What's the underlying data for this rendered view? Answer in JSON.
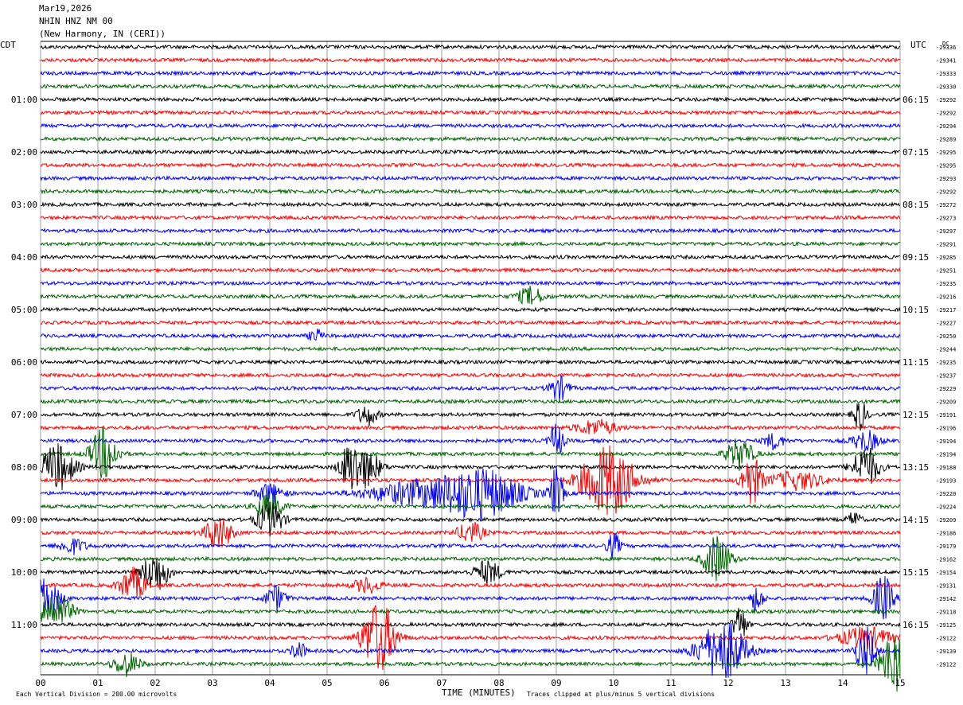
{
  "header": {
    "date": "Mar19,2026",
    "station": "NHIN HNZ NM 00",
    "location": "(New Harmony, IN (CERI))"
  },
  "left_tz": "CDT",
  "right_tz": "UTC",
  "dc_label": "DC",
  "footer": {
    "scale": "Each Vertical Division =  200.00 microvolts",
    "xlabel": "TIME (MINUTES)",
    "clip": "Traces clipped at plus/minus 5 vertical divisions"
  },
  "colors": {
    "trace_cycle": [
      "#000000",
      "#ff0000",
      "#0000ff",
      "#006400"
    ],
    "grid": "#888888",
    "background": "#ffffff"
  },
  "chart_data": {
    "type": "line",
    "title": "",
    "xlabel": "TIME (MINUTES)",
    "xlim": [
      0,
      15
    ],
    "x_ticks": [
      "00",
      "01",
      "02",
      "03",
      "04",
      "05",
      "06",
      "07",
      "08",
      "09",
      "10",
      "11",
      "12",
      "13",
      "14",
      "15"
    ],
    "grid": true,
    "left_hour_labels": [
      "01:00",
      "02:00",
      "03:00",
      "04:00",
      "05:00",
      "06:00",
      "07:00",
      "08:00",
      "09:00",
      "10:00",
      "11:00"
    ],
    "right_hour_labels": [
      "06:15",
      "07:15",
      "08:15",
      "09:15",
      "10:15",
      "11:15",
      "12:15",
      "13:15",
      "14:15",
      "15:15",
      "16:15"
    ],
    "trace_offsets": [
      "-29336",
      "-29341",
      "-29333",
      "-29330",
      "-29292",
      "-29292",
      "-29294",
      "-29289",
      "-29295",
      "-29295",
      "-29293",
      "-29292",
      "-29272",
      "-29273",
      "-29297",
      "-29291",
      "-29285",
      "-29251",
      "-29235",
      "-29216",
      "-29217",
      "-29227",
      "-29250",
      "-29244",
      "-29235",
      "-29237",
      "-29229",
      "-29209",
      "-29191",
      "-29196",
      "-29194",
      "-29194",
      "-29188",
      "-29193",
      "-29220",
      "-29224",
      "-29209",
      "-29186",
      "-29179",
      "-29162",
      "-29154",
      "-29131",
      "-29142",
      "-29118",
      "-29125",
      "-29122",
      "-29139",
      "-29122"
    ],
    "events": [
      {
        "trace": 19,
        "minute": 8.55,
        "amp": 0.7,
        "dur": 0.2
      },
      {
        "trace": 22,
        "minute": 4.8,
        "amp": 0.5,
        "dur": 0.1
      },
      {
        "trace": 26,
        "minute": 9.05,
        "amp": 0.9,
        "dur": 0.15
      },
      {
        "trace": 28,
        "minute": 5.7,
        "amp": 0.8,
        "dur": 0.15
      },
      {
        "trace": 28,
        "minute": 14.3,
        "amp": 1.2,
        "dur": 0.1
      },
      {
        "trace": 29,
        "minute": 9.7,
        "amp": 0.6,
        "dur": 0.3
      },
      {
        "trace": 30,
        "minute": 9.0,
        "amp": 1.5,
        "dur": 0.1
      },
      {
        "trace": 30,
        "minute": 14.4,
        "amp": 0.8,
        "dur": 0.2
      },
      {
        "trace": 30,
        "minute": 12.8,
        "amp": 0.6,
        "dur": 0.15
      },
      {
        "trace": 31,
        "minute": 1.1,
        "amp": 2.0,
        "dur": 0.2
      },
      {
        "trace": 31,
        "minute": 12.2,
        "amp": 1.2,
        "dur": 0.2
      },
      {
        "trace": 32,
        "minute": 0.3,
        "amp": 1.8,
        "dur": 0.25
      },
      {
        "trace": 32,
        "minute": 5.4,
        "amp": 1.8,
        "dur": 0.15
      },
      {
        "trace": 32,
        "minute": 5.7,
        "amp": 1.4,
        "dur": 0.2
      },
      {
        "trace": 32,
        "minute": 14.4,
        "amp": 1.6,
        "dur": 0.2
      },
      {
        "trace": 33,
        "minute": 9.9,
        "amp": 2.8,
        "dur": 0.4
      },
      {
        "trace": 33,
        "minute": 12.4,
        "amp": 2.0,
        "dur": 0.15
      },
      {
        "trace": 33,
        "minute": 13.2,
        "amp": 0.7,
        "dur": 0.4
      },
      {
        "trace": 34,
        "minute": 7.7,
        "amp": 1.8,
        "dur": 0.6
      },
      {
        "trace": 34,
        "minute": 6.6,
        "amp": 0.9,
        "dur": 0.8
      },
      {
        "trace": 34,
        "minute": 9.0,
        "amp": 2.0,
        "dur": 0.1
      },
      {
        "trace": 34,
        "minute": 4.0,
        "amp": 0.8,
        "dur": 0.2
      },
      {
        "trace": 35,
        "minute": 4.0,
        "amp": 1.0,
        "dur": 0.2
      },
      {
        "trace": 36,
        "minute": 4.0,
        "amp": 1.3,
        "dur": 0.2
      },
      {
        "trace": 36,
        "minute": 14.2,
        "amp": 0.6,
        "dur": 0.1
      },
      {
        "trace": 37,
        "minute": 3.1,
        "amp": 1.3,
        "dur": 0.2
      },
      {
        "trace": 37,
        "minute": 7.5,
        "amp": 0.8,
        "dur": 0.2
      },
      {
        "trace": 38,
        "minute": 0.55,
        "amp": 0.6,
        "dur": 0.2
      },
      {
        "trace": 38,
        "minute": 10.0,
        "amp": 1.0,
        "dur": 0.1
      },
      {
        "trace": 39,
        "minute": 11.8,
        "amp": 1.8,
        "dur": 0.2
      },
      {
        "trace": 40,
        "minute": 2.0,
        "amp": 1.6,
        "dur": 0.2
      },
      {
        "trace": 40,
        "minute": 7.8,
        "amp": 0.9,
        "dur": 0.2
      },
      {
        "trace": 41,
        "minute": 1.6,
        "amp": 1.3,
        "dur": 0.2
      },
      {
        "trace": 41,
        "minute": 5.7,
        "amp": 0.6,
        "dur": 0.2
      },
      {
        "trace": 42,
        "minute": 0.1,
        "amp": 1.6,
        "dur": 0.2
      },
      {
        "trace": 42,
        "minute": 4.1,
        "amp": 1.0,
        "dur": 0.15
      },
      {
        "trace": 42,
        "minute": 12.5,
        "amp": 1.0,
        "dur": 0.1
      },
      {
        "trace": 42,
        "minute": 14.7,
        "amp": 1.8,
        "dur": 0.15
      },
      {
        "trace": 43,
        "minute": 0.25,
        "amp": 1.5,
        "dur": 0.25
      },
      {
        "trace": 44,
        "minute": 12.2,
        "amp": 1.5,
        "dur": 0.1
      },
      {
        "trace": 45,
        "minute": 5.9,
        "amp": 2.8,
        "dur": 0.25
      },
      {
        "trace": 45,
        "minute": 14.4,
        "amp": 0.8,
        "dur": 0.4
      },
      {
        "trace": 46,
        "minute": 12.0,
        "amp": 1.8,
        "dur": 0.3
      },
      {
        "trace": 46,
        "minute": 14.4,
        "amp": 1.8,
        "dur": 0.15
      },
      {
        "trace": 46,
        "minute": 4.5,
        "amp": 0.8,
        "dur": 0.1
      },
      {
        "trace": 46,
        "minute": 11.7,
        "amp": 1.0,
        "dur": 0.3
      },
      {
        "trace": 47,
        "minute": 14.9,
        "amp": 2.6,
        "dur": 0.2
      },
      {
        "trace": 47,
        "minute": 1.5,
        "amp": 0.9,
        "dur": 0.2
      }
    ]
  }
}
